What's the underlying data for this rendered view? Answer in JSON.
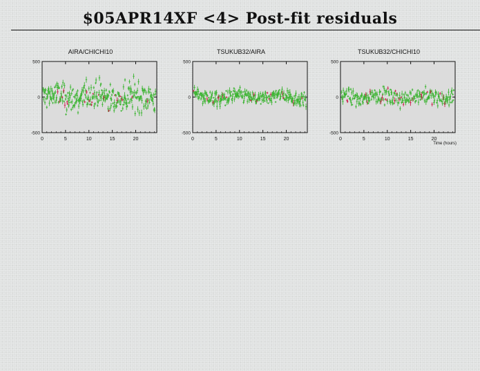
{
  "title": "$05APR14XF <4> Post-fit residuals",
  "chart_data": [
    {
      "type": "scatter",
      "title": "AIRA/CHICHI10",
      "xlabel": "",
      "ylabel": "",
      "xlim": [
        0,
        24.5
      ],
      "ylim": [
        -500,
        500
      ],
      "xticks": [
        0,
        5,
        10,
        15,
        20
      ],
      "yticks": [
        500,
        0,
        -500
      ],
      "colors": {
        "normal": "#3cb432",
        "flagged": "#cc1f4c"
      },
      "points": 300,
      "y_spread": 320
    },
    {
      "type": "scatter",
      "title": "TSUKUB32/AIRA",
      "xlabel": "",
      "ylabel": "",
      "xlim": [
        0,
        24.5
      ],
      "ylim": [
        -500,
        500
      ],
      "xticks": [
        0,
        5,
        10,
        15,
        20
      ],
      "yticks": [
        500,
        0,
        -500
      ],
      "colors": {
        "normal": "#3cb432",
        "flagged": "#cc1f4c"
      },
      "points": 260,
      "y_spread": 160
    },
    {
      "type": "scatter",
      "title": "TSUKUB32/CHICHI10",
      "xlabel": "Time (hours)",
      "ylabel": "",
      "xlim": [
        0,
        24.5
      ],
      "ylim": [
        -500,
        500
      ],
      "xticks": [
        0,
        5,
        10,
        15,
        20
      ],
      "yticks": [
        500,
        0,
        -500
      ],
      "colors": {
        "normal": "#3cb432",
        "flagged": "#cc1f4c"
      },
      "points": 240,
      "y_spread": 170
    }
  ]
}
